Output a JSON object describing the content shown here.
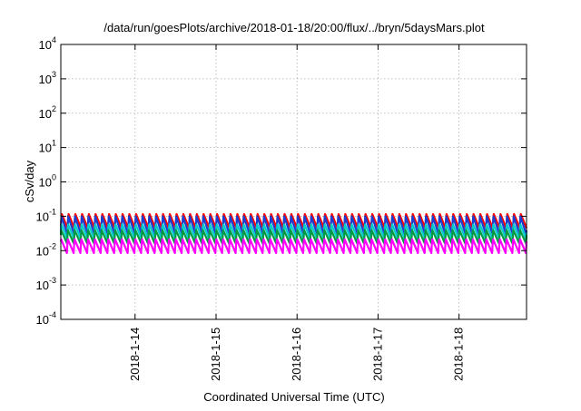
{
  "chart_data": {
    "type": "line",
    "title": "/data/run/goesPlots/archive/2018-01-18/20:00/flux/../bryn/5daysMars.plot",
    "xlabel": "Coordinated Universal Time (UTC)",
    "ylabel": "cSv/day",
    "y_scale": "log",
    "ylim": [
      0.0001,
      10000
    ],
    "y_ticks": [
      {
        "base": "10",
        "exp": "-4",
        "value": 0.0001
      },
      {
        "base": "10",
        "exp": "-3",
        "value": 0.001
      },
      {
        "base": "10",
        "exp": "-2",
        "value": 0.01
      },
      {
        "base": "10",
        "exp": "-1",
        "value": 0.1
      },
      {
        "base": "10",
        "exp": "0",
        "value": 1
      },
      {
        "base": "10",
        "exp": "1",
        "value": 10
      },
      {
        "base": "10",
        "exp": "2",
        "value": 100
      },
      {
        "base": "10",
        "exp": "3",
        "value": 1000
      },
      {
        "base": "10",
        "exp": "4",
        "value": 10000
      }
    ],
    "xlim": [
      "2018-01-13T02:00",
      "2018-01-18T20:00"
    ],
    "x_ticks": [
      {
        "label": "2018-1-14",
        "value": "2018-01-14T00:00"
      },
      {
        "label": "2018-1-15",
        "value": "2018-01-15T00:00"
      },
      {
        "label": "2018-1-16",
        "value": "2018-01-16T00:00"
      },
      {
        "label": "2018-1-17",
        "value": "2018-01-17T00:00"
      },
      {
        "label": "2018-1-18",
        "value": "2018-01-18T00:00"
      }
    ],
    "grid": true,
    "legend": "none",
    "orbit_period_hours": 2,
    "series": [
      {
        "color": "#ff0000",
        "peak": 0.12,
        "trough": 0.045
      },
      {
        "color": "#1a3fd0",
        "peak": 0.1,
        "trough": 0.03
      },
      {
        "color": "#00cccc",
        "peak": 0.06,
        "trough": 0.022
      },
      {
        "color": "#009a44",
        "peak": 0.04,
        "trough": 0.016
      },
      {
        "color": "#ff00ff",
        "peak": 0.022,
        "trough": 0.0085
      }
    ]
  }
}
